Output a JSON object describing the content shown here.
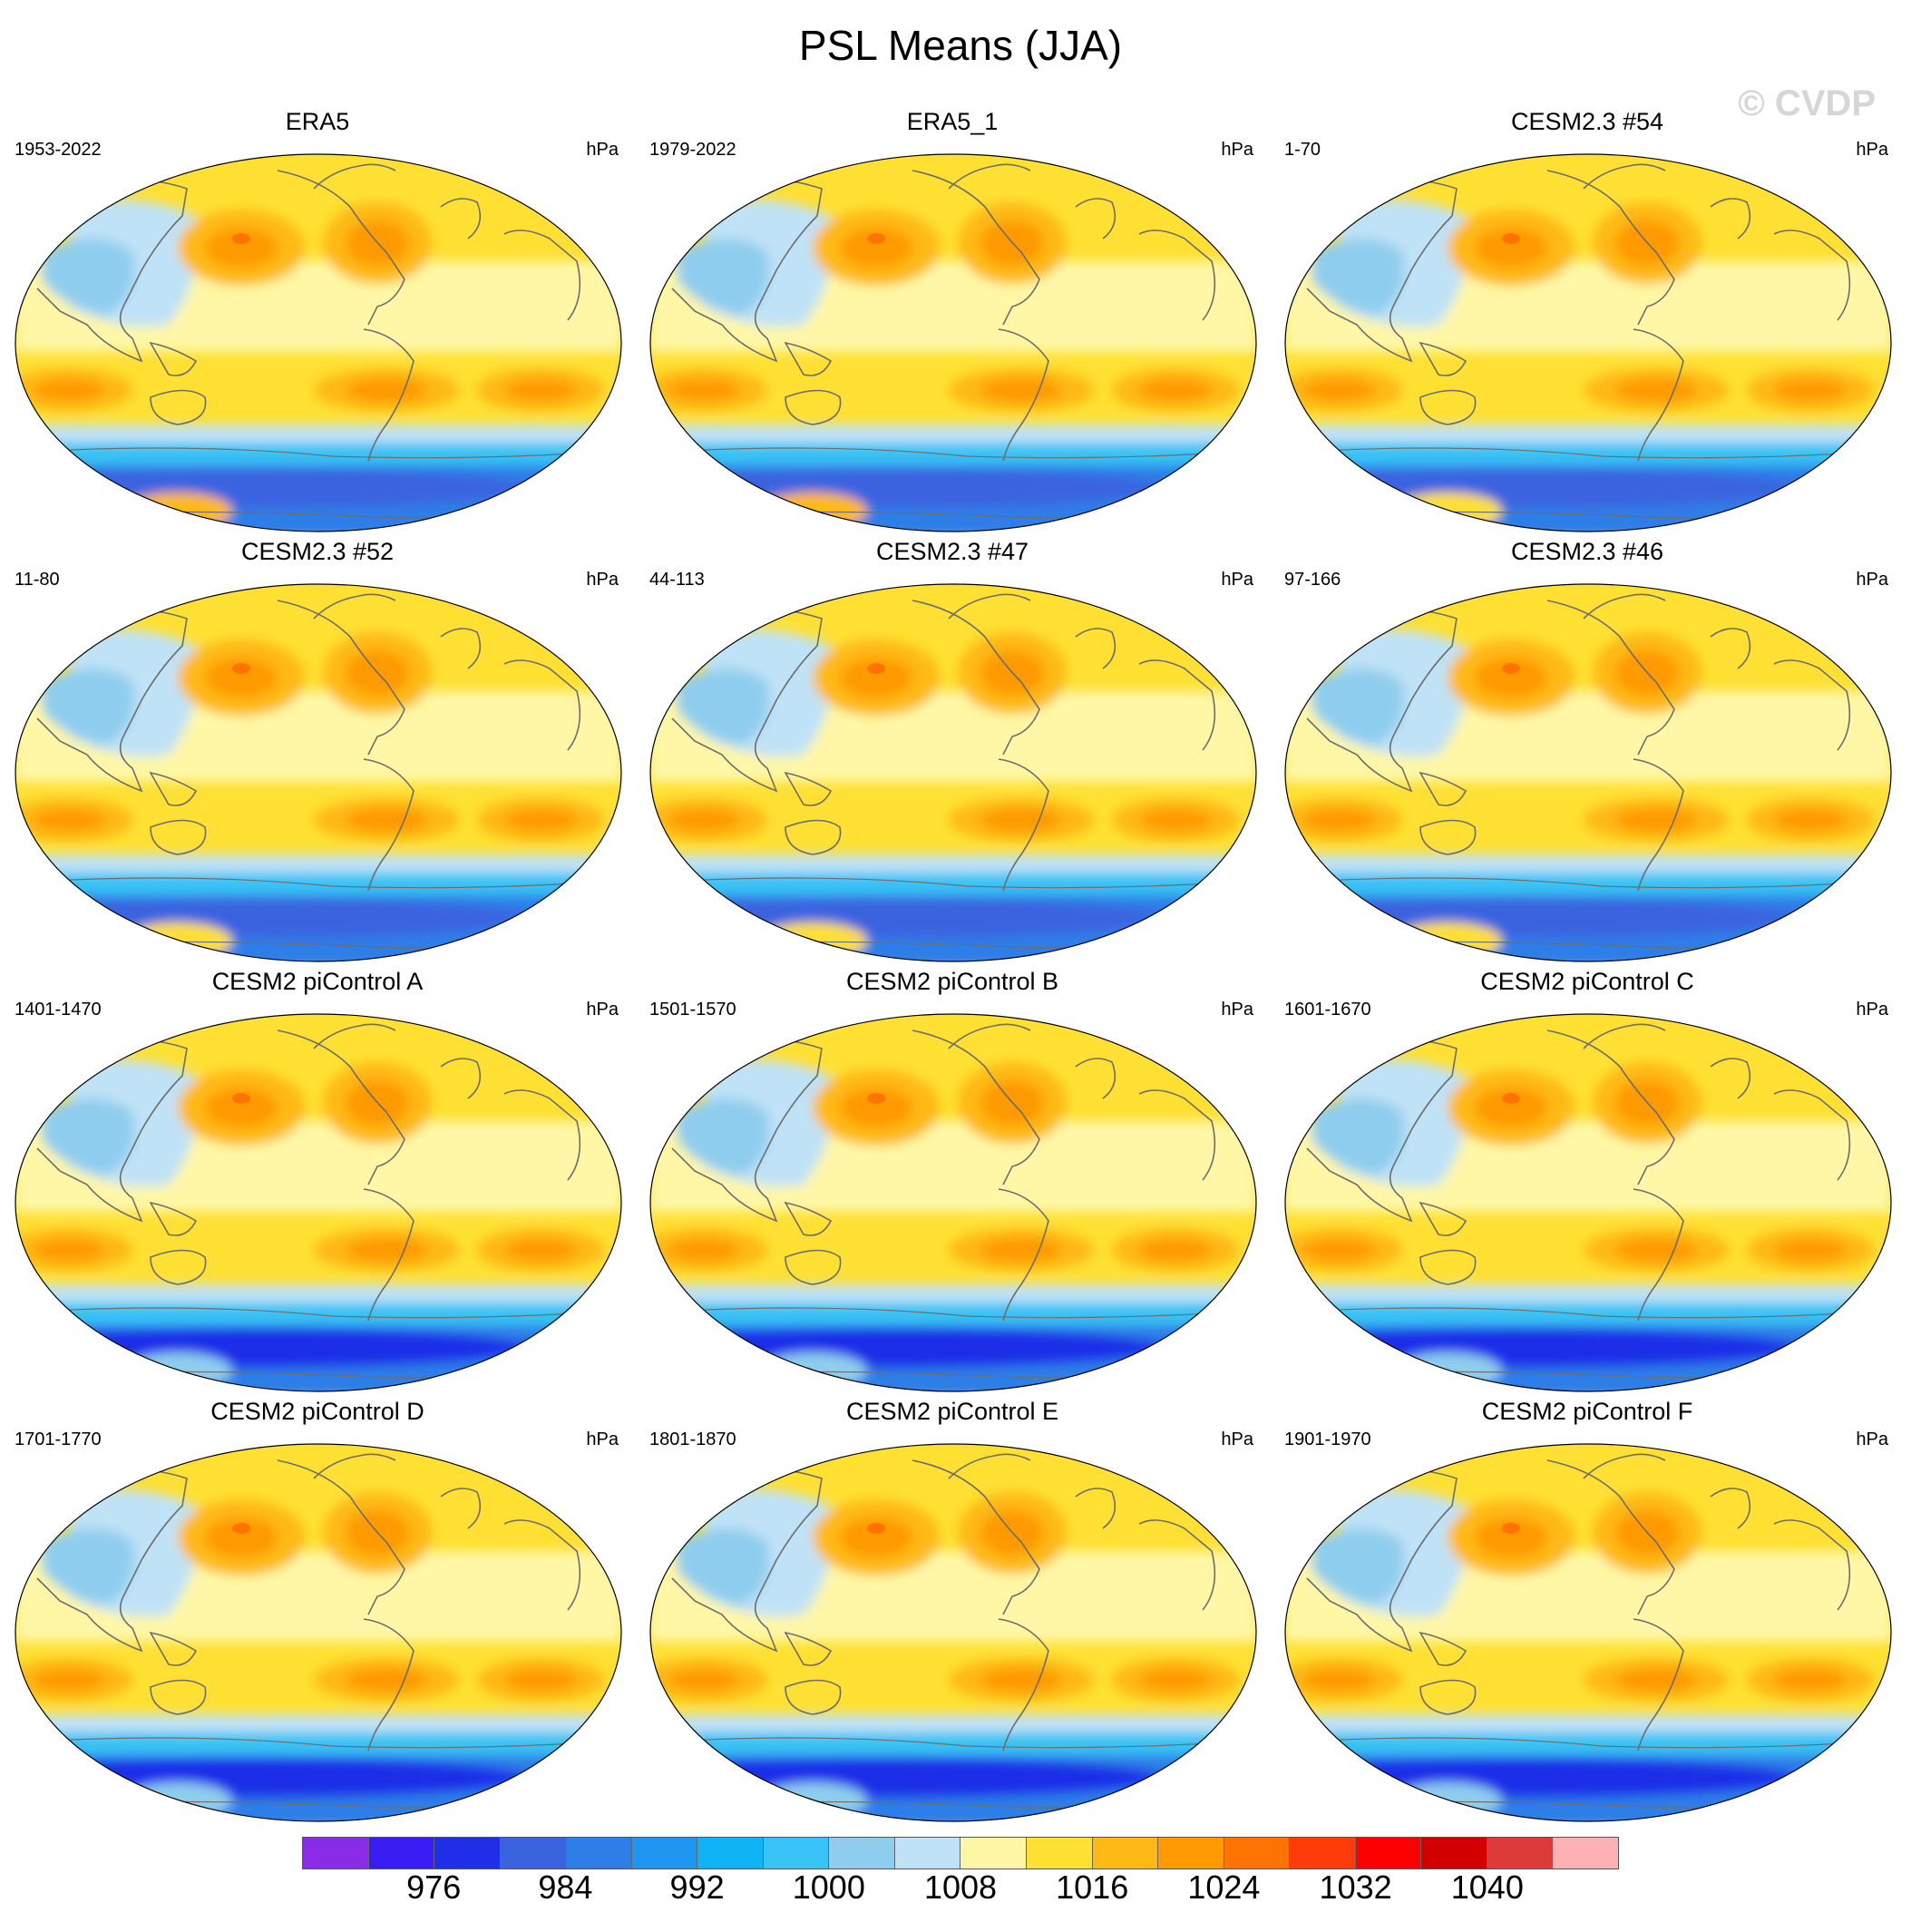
{
  "title": "PSL Means (JJA)",
  "watermark": "© CVDP",
  "units": "hPa",
  "panels": [
    {
      "title": "ERA5",
      "period": "1953-2022"
    },
    {
      "title": "ERA5_1",
      "period": "1979-2022"
    },
    {
      "title": "CESM2.3 #54",
      "period": "1-70"
    },
    {
      "title": "CESM2.3 #52",
      "period": "11-80"
    },
    {
      "title": "CESM2.3 #47",
      "period": "44-113"
    },
    {
      "title": "CESM2.3 #46",
      "period": "97-166"
    },
    {
      "title": "CESM2 piControl A",
      "period": "1401-1470"
    },
    {
      "title": "CESM2 piControl B",
      "period": "1501-1570"
    },
    {
      "title": "CESM2 piControl C",
      "period": "1601-1670"
    },
    {
      "title": "CESM2 piControl D",
      "period": "1701-1770"
    },
    {
      "title": "CESM2 piControl E",
      "period": "1801-1870"
    },
    {
      "title": "CESM2 piControl F",
      "period": "1901-1970"
    }
  ],
  "colorbar": {
    "colors": [
      "#8a2be8",
      "#3a1df5",
      "#1f2ee8",
      "#3a63e0",
      "#2f7ee8",
      "#1e96f2",
      "#0fb4f5",
      "#38c2f5",
      "#8fcdee",
      "#bfe2f6",
      "#fff7a6",
      "#ffe033",
      "#ffb914",
      "#ff9a00",
      "#ff7400",
      "#ff3b0c",
      "#ff0000",
      "#d40000",
      "#dd3a3a",
      "#ffb0b5"
    ],
    "tick_labels": [
      "976",
      "984",
      "992",
      "1000",
      "1008",
      "1016",
      "1024",
      "1032",
      "1040"
    ]
  }
}
